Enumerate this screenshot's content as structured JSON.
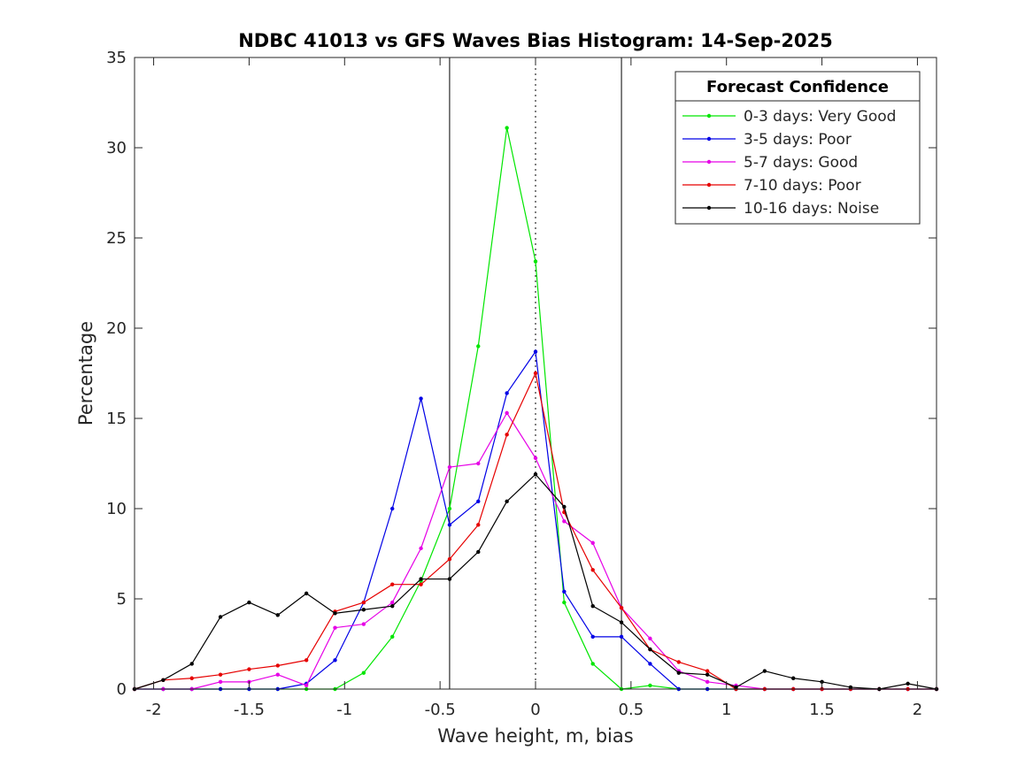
{
  "chart_data": {
    "type": "line",
    "title": "NDBC 41013 vs GFS Waves Bias Histogram: 14-Sep-2025",
    "xlabel": "Wave height, m, bias",
    "ylabel": "Percentage",
    "xlim": [
      -2.1,
      2.1
    ],
    "ylim": [
      0,
      35
    ],
    "xticks": [
      -2,
      -1.5,
      -1,
      -0.5,
      0,
      0.5,
      1,
      1.5,
      2
    ],
    "xtick_labels": [
      "-2",
      "-1.5",
      "-1",
      "-0.5",
      "0",
      "0.5",
      "1",
      "1.5",
      "2"
    ],
    "yticks": [
      0,
      5,
      10,
      15,
      20,
      25,
      30,
      35
    ],
    "ytick_labels": [
      "0",
      "5",
      "10",
      "15",
      "20",
      "25",
      "30",
      "35"
    ],
    "grid": false,
    "vertical_lines": [
      {
        "x": -0.45,
        "style": "solid"
      },
      {
        "x": 0,
        "style": "dotted"
      },
      {
        "x": 0.45,
        "style": "solid"
      }
    ],
    "legend": {
      "title": "Forecast Confidence",
      "position": "top-right"
    },
    "x": [
      -2.1,
      -1.95,
      -1.8,
      -1.65,
      -1.5,
      -1.35,
      -1.2,
      -1.05,
      -0.9,
      -0.75,
      -0.6,
      -0.45,
      -0.3,
      -0.15,
      0,
      0.15,
      0.3,
      0.45,
      0.6,
      0.75,
      0.9,
      1.05,
      1.2,
      1.35,
      1.5,
      1.65,
      1.8,
      1.95,
      2.1
    ],
    "series": [
      {
        "name": "0-3 days: Very Good",
        "color": "#00e600",
        "values": [
          0,
          0,
          0,
          0,
          0,
          0,
          0,
          0,
          0.9,
          2.9,
          6.0,
          10.0,
          19.0,
          31.1,
          23.7,
          4.8,
          1.4,
          0,
          0.2,
          0,
          0,
          0,
          0,
          0,
          0,
          0,
          0,
          0,
          0
        ]
      },
      {
        "name": "3-5 days: Poor",
        "color": "#0000e6",
        "values": [
          0,
          0,
          0,
          0,
          0,
          0,
          0.3,
          1.6,
          4.8,
          10.0,
          16.1,
          9.1,
          10.4,
          16.4,
          18.7,
          5.4,
          2.9,
          2.9,
          1.4,
          0,
          0,
          0,
          0,
          0,
          0,
          0,
          0,
          0,
          0
        ]
      },
      {
        "name": "5-7 days: Good",
        "color": "#e600e6",
        "values": [
          0,
          0,
          0,
          0.4,
          0.4,
          0.8,
          0.2,
          3.4,
          3.6,
          4.8,
          7.8,
          12.3,
          12.5,
          15.3,
          12.8,
          9.3,
          8.1,
          4.5,
          2.8,
          1.0,
          0.4,
          0.2,
          0,
          0,
          0,
          0,
          0,
          0,
          0
        ]
      },
      {
        "name": "7-10 days: Poor",
        "color": "#e60000",
        "values": [
          0,
          0.5,
          0.6,
          0.8,
          1.1,
          1.3,
          1.6,
          4.3,
          4.8,
          5.8,
          5.8,
          7.2,
          9.1,
          14.1,
          17.5,
          9.8,
          6.6,
          4.5,
          2.2,
          1.5,
          1.0,
          0,
          0,
          0,
          0,
          0,
          0,
          0,
          0
        ]
      },
      {
        "name": "10-16 days: Noise",
        "color": "#000000",
        "values": [
          0,
          0.5,
          1.4,
          4.0,
          4.8,
          4.1,
          5.3,
          4.2,
          4.4,
          4.6,
          6.1,
          6.1,
          7.6,
          10.4,
          11.9,
          10.1,
          4.6,
          3.7,
          2.2,
          0.9,
          0.8,
          0.1,
          1.0,
          0.6,
          0.4,
          0.1,
          0,
          0.3,
          0
        ]
      }
    ]
  }
}
